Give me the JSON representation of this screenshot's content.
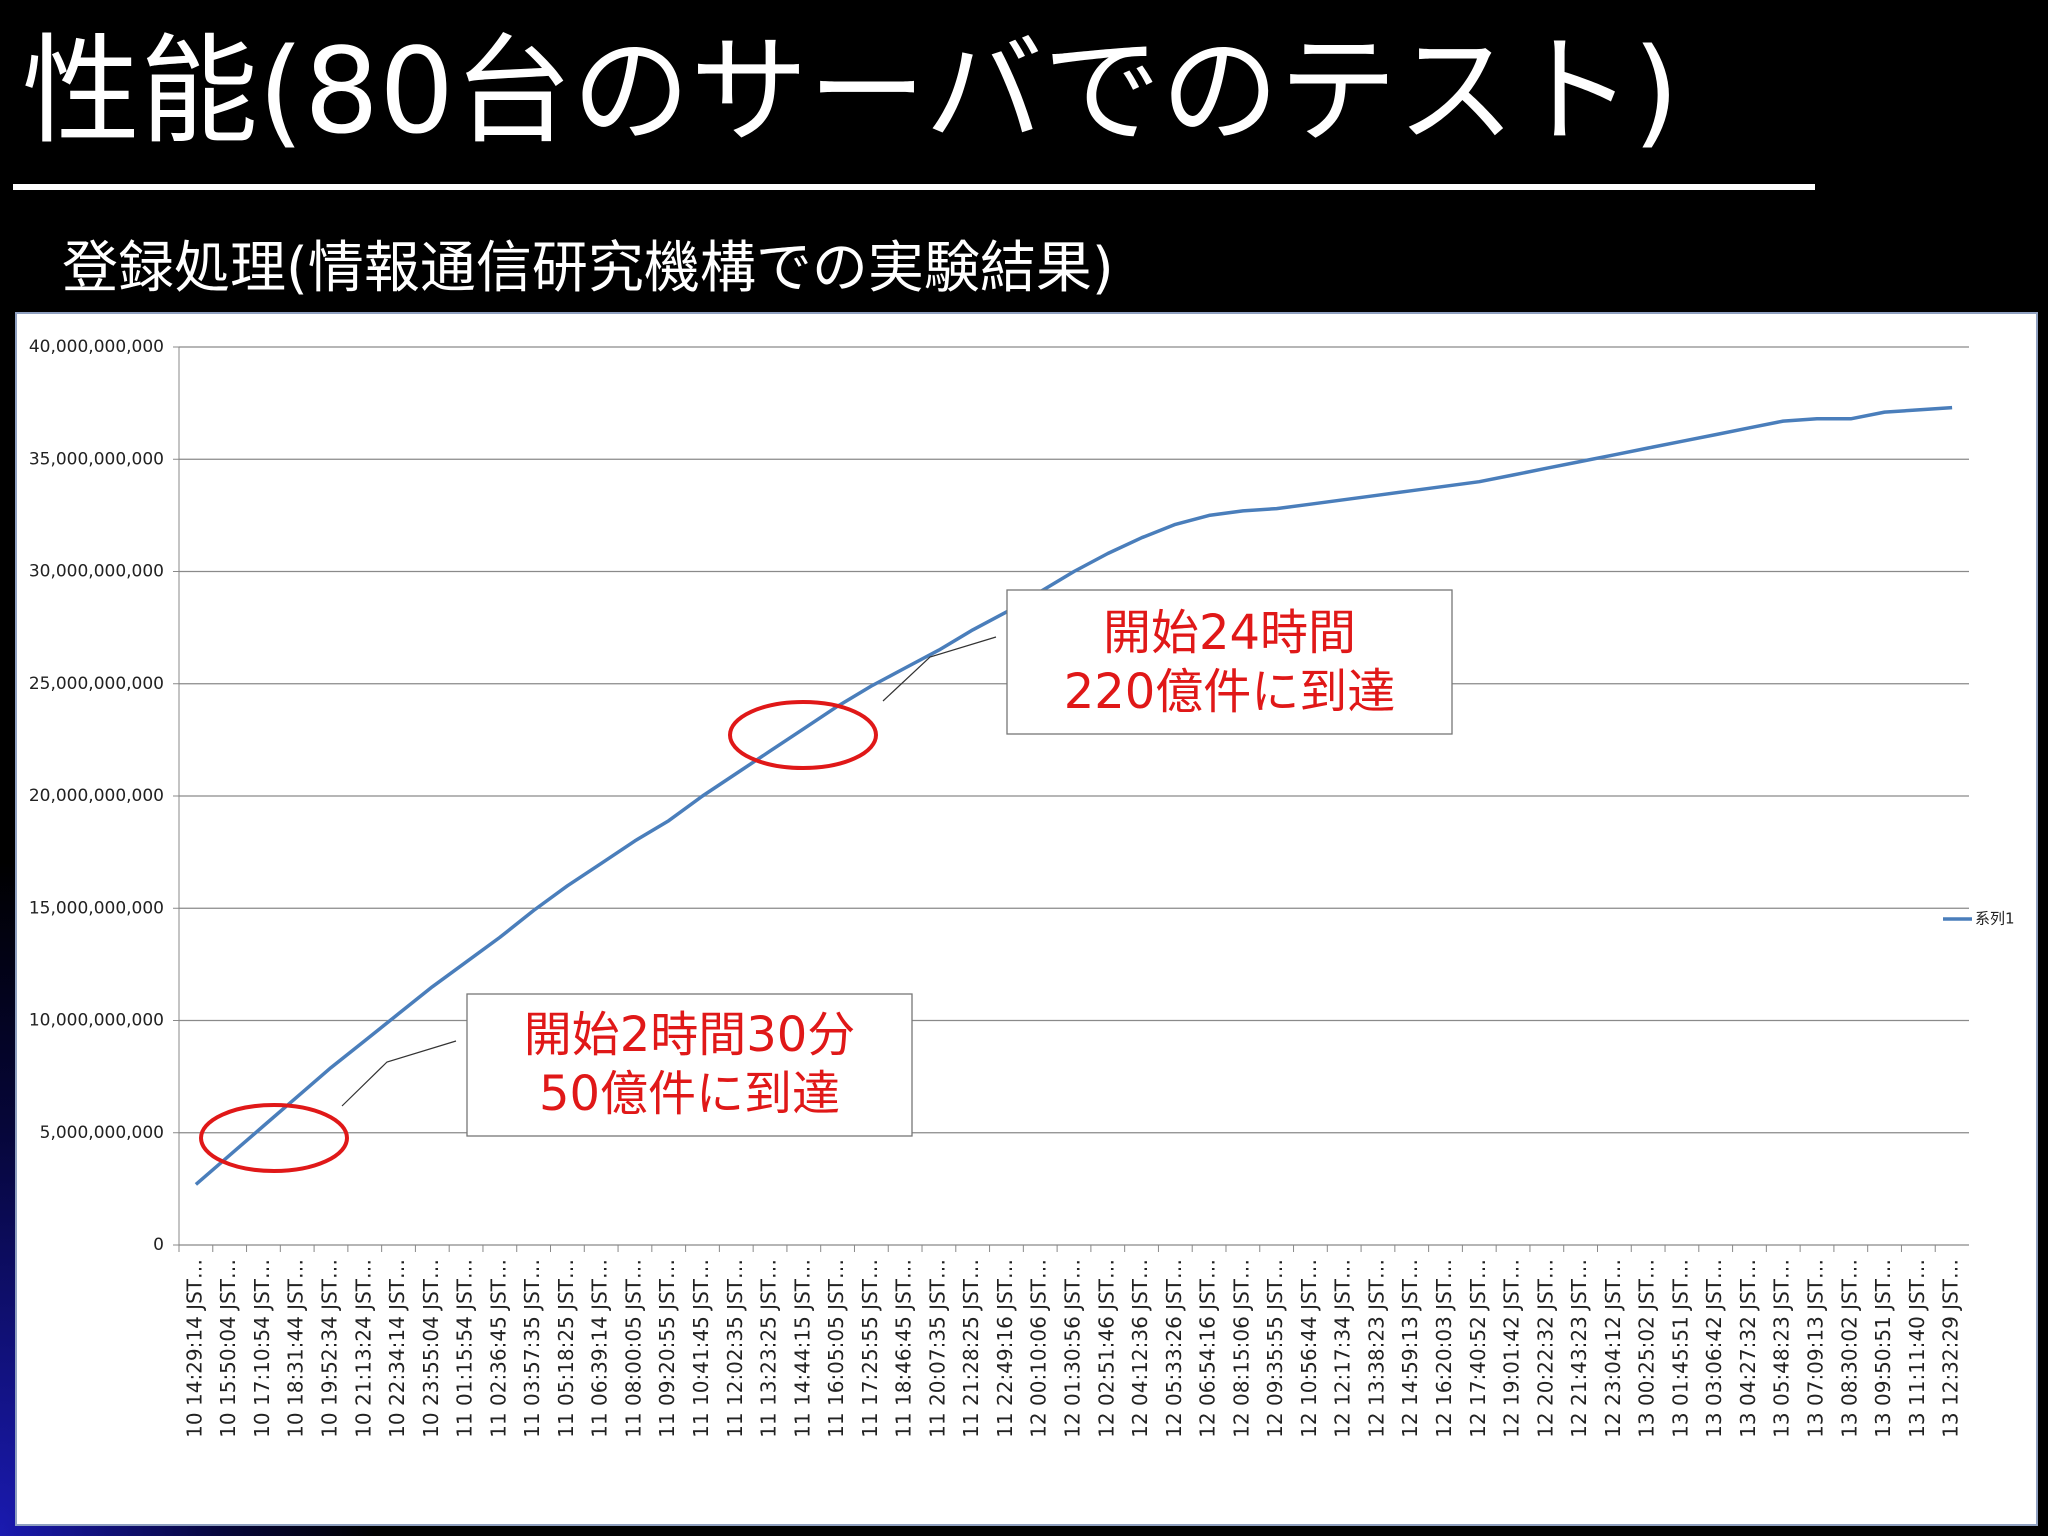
{
  "chart_data": {
    "type": "line",
    "title": "性能(80台のサーバでのテスト)",
    "subtitle": "登録処理(情報通信研究機構での実験結果)",
    "categories": [
      "10 14:29:14 JST…",
      "10 15:50:04 JST…",
      "10 17:10:54 JST…",
      "10 18:31:44 JST…",
      "10 19:52:34 JST…",
      "10 21:13:24 JST…",
      "10 22:34:14 JST…",
      "10 23:55:04 JST…",
      "11 01:15:54 JST…",
      "11 02:36:45 JST…",
      "11 03:57:35 JST…",
      "11 05:18:25 JST…",
      "11 06:39:14 JST…",
      "11 08:00:05 JST…",
      "11 09:20:55 JST…",
      "11 10:41:45 JST…",
      "11 12:02:35 JST…",
      "11 13:23:25 JST…",
      "11 14:44:15 JST…",
      "11 16:05:05 JST…",
      "11 17:25:55 JST…",
      "11 18:46:45 JST…",
      "11 20:07:35 JST…",
      "11 21:28:25 JST…",
      "11 22:49:16 JST…",
      "12 00:10:06 JST…",
      "12 01:30:56 JST…",
      "12 02:51:46 JST…",
      "12 04:12:36 JST…",
      "12 05:33:26 JST…",
      "12 06:54:16 JST…",
      "12 08:15:06 JST…",
      "12 09:35:55 JST…",
      "12 10:56:44 JST…",
      "12 12:17:34 JST…",
      "12 13:38:23 JST…",
      "12 14:59:13 JST…",
      "12 16:20:03 JST…",
      "12 17:40:52 JST…",
      "12 19:01:42 JST…",
      "12 20:22:32 JST…",
      "12 21:43:23 JST…",
      "12 23:04:12 JST…",
      "13 00:25:02 JST…",
      "13 01:45:51 JST…",
      "13 03:06:42 JST…",
      "13 04:27:32 JST…",
      "13 05:48:23 JST…",
      "13 07:09:13 JST…",
      "13 08:30:02 JST…",
      "13 09:50:51 JST…",
      "13 11:11:40 JST…",
      "13 12:32:29 JST…"
    ],
    "series": [
      {
        "name": "系列1",
        "color": "#4a7ebb",
        "values": [
          2700000000,
          4000000000,
          5300000000,
          6600000000,
          7900000000,
          9100000000,
          10300000000,
          11500000000,
          12600000000,
          13700000000,
          14900000000,
          16000000000,
          17000000000,
          18000000000,
          18900000000,
          20000000000,
          21000000000,
          22000000000,
          23000000000,
          24000000000,
          24900000000,
          25700000000,
          26500000000,
          27400000000,
          28200000000,
          29100000000,
          30000000000,
          30800000000,
          31500000000,
          32100000000,
          32500000000,
          32700000000,
          32800000000,
          33000000000,
          33200000000,
          33400000000,
          33600000000,
          33800000000,
          34000000000,
          34300000000,
          34600000000,
          34900000000,
          35200000000,
          35500000000,
          35800000000,
          36100000000,
          36400000000,
          36700000000,
          36800000000,
          36800000000,
          37100000000,
          37200000000,
          37300000000
        ]
      }
    ],
    "ylim": [
      0,
      40000000000
    ],
    "yticks": [
      0,
      {
        "value": 5000000000,
        "label": "5,000,000,000"
      },
      {
        "value": 10000000000,
        "label": "10,000,000,000"
      },
      {
        "value": 15000000000,
        "label": "15,000,000,000"
      },
      {
        "value": 20000000000,
        "label": "20,000,000,000"
      },
      {
        "value": 25000000000,
        "label": "25,000,000,000"
      },
      {
        "value": 30000000000,
        "label": "30,000,000,000"
      },
      {
        "value": 35000000000,
        "label": "35,000,000,000"
      },
      {
        "value": 40000000000,
        "label": "40,000,000,000"
      }
    ],
    "grid": true,
    "legend": "right",
    "annotations": [
      {
        "text": [
          "開始24時間",
          "220億件に到達"
        ]
      },
      {
        "text": [
          "開始2時間30分",
          "50億件に到達"
        ]
      }
    ]
  }
}
